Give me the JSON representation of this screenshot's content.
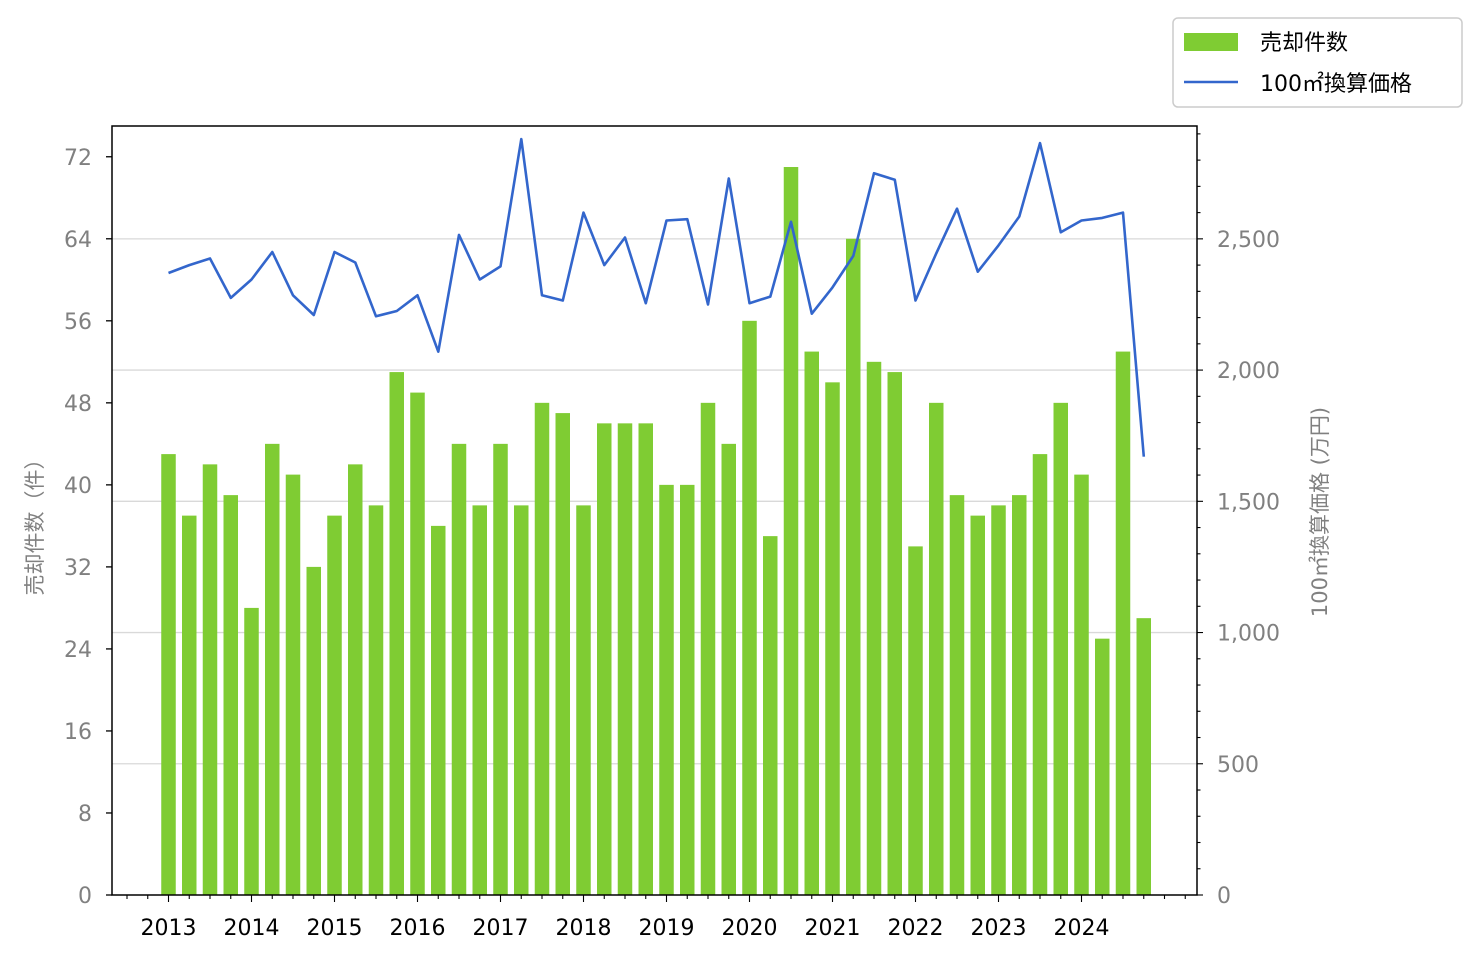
{
  "chart_data": {
    "type": "bar",
    "x": [
      "2013Q1",
      "2013Q2",
      "2013Q3",
      "2013Q4",
      "2014Q1",
      "2014Q2",
      "2014Q3",
      "2014Q4",
      "2015Q1",
      "2015Q2",
      "2015Q3",
      "2015Q4",
      "2016Q1",
      "2016Q2",
      "2016Q3",
      "2016Q4",
      "2017Q1",
      "2017Q2",
      "2017Q3",
      "2017Q4",
      "2018Q1",
      "2018Q2",
      "2018Q3",
      "2018Q4",
      "2019Q1",
      "2019Q2",
      "2019Q3",
      "2019Q4",
      "2020Q1",
      "2020Q2",
      "2020Q3",
      "2020Q4",
      "2021Q1",
      "2021Q2",
      "2021Q3",
      "2021Q4",
      "2022Q1",
      "2022Q2",
      "2022Q3",
      "2022Q4",
      "2023Q1",
      "2023Q2",
      "2023Q3",
      "2023Q4",
      "2024Q1",
      "2024Q2",
      "2024Q3",
      "2024Q4"
    ],
    "x_tick_labels": [
      "2013",
      "2014",
      "2015",
      "2016",
      "2017",
      "2018",
      "2019",
      "2020",
      "2021",
      "2022",
      "2023",
      "2024"
    ],
    "series": [
      {
        "name": "売却件数",
        "type": "bar",
        "axis": "left",
        "color": "#7fcc33",
        "values": [
          43,
          37,
          42,
          39,
          28,
          44,
          41,
          32,
          37,
          42,
          38,
          51,
          49,
          36,
          44,
          38,
          44,
          38,
          48,
          47,
          38,
          46,
          46,
          46,
          40,
          40,
          48,
          44,
          56,
          35,
          71,
          53,
          50,
          64,
          52,
          51,
          34,
          48,
          39,
          37,
          38,
          39,
          43,
          48,
          41,
          25,
          53,
          27
        ]
      },
      {
        "name": "100㎡換算価格",
        "type": "line",
        "axis": "right",
        "color": "#3366cc",
        "values": [
          2370,
          2400,
          2425,
          2275,
          2345,
          2450,
          2285,
          2210,
          2450,
          2410,
          2205,
          2225,
          2285,
          2070,
          2515,
          2345,
          2395,
          2880,
          2285,
          2265,
          2600,
          2400,
          2505,
          2255,
          2570,
          2575,
          2250,
          2730,
          2255,
          2280,
          2565,
          2215,
          2315,
          2435,
          2750,
          2725,
          2265,
          2445,
          2615,
          2375,
          2475,
          2585,
          2865,
          2525,
          2570,
          2580,
          2600,
          1670
        ]
      }
    ],
    "ylabel_left": "売却件数（件）",
    "ylabel_right": "100㎡換算価格 (万円)",
    "ylim_left": [
      0,
      75
    ],
    "ylim_right": [
      0,
      2930
    ],
    "yticks_left": [
      "0",
      "8",
      "16",
      "24",
      "32",
      "40",
      "48",
      "56",
      "64",
      "72"
    ],
    "yticks_right": [
      "0",
      "500",
      "1,000",
      "1,500",
      "2,000",
      "2,500"
    ],
    "grid": "horizontal, right axis",
    "legend_position": "top-right, outside plot"
  }
}
